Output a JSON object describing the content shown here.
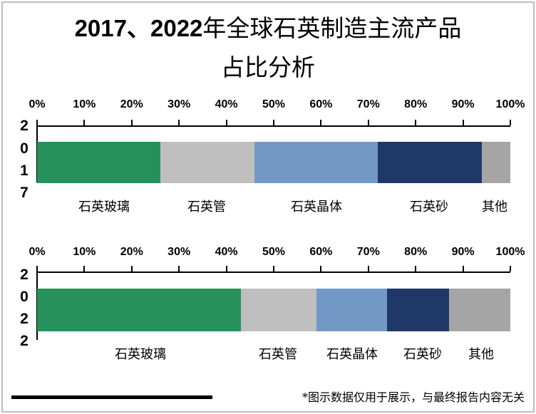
{
  "title": {
    "line1_bold": "2017、2022",
    "line1_rest": "年全球石英制造主流产品",
    "line2": "占比分析"
  },
  "footer": {
    "note": "*图示数据仅用于展示，与最终报告内容无关"
  },
  "colors": {
    "石英玻璃": "#27915C",
    "石英管": "#BFBFBF",
    "石英晶体": "#7299C6",
    "石英砂": "#1F3868",
    "其他": "#A5A5A5"
  },
  "chart_data": [
    {
      "type": "bar",
      "orientation": "horizontal",
      "stacked": "100%",
      "title": "2017、2022年全球石英制造主流产品占比分析",
      "ylabel": "2017",
      "categories": [
        "石英玻璃",
        "石英管",
        "石英晶体",
        "石英砂",
        "其他"
      ],
      "values": [
        26,
        20,
        26,
        22,
        6
      ],
      "xticks": [
        "0%",
        "10%",
        "20%",
        "30%",
        "40%",
        "50%",
        "60%",
        "70%",
        "80%",
        "90%",
        "100%"
      ],
      "xlim": [
        0,
        100
      ],
      "grid": false,
      "legend": "labels below bar segments"
    },
    {
      "type": "bar",
      "orientation": "horizontal",
      "stacked": "100%",
      "ylabel": "2022",
      "categories": [
        "石英玻璃",
        "石英管",
        "石英晶体",
        "石英砂",
        "其他"
      ],
      "values": [
        43,
        16,
        15,
        13,
        13
      ],
      "xticks": [
        "0%",
        "10%",
        "20%",
        "30%",
        "40%",
        "50%",
        "60%",
        "70%",
        "80%",
        "90%",
        "100%"
      ],
      "xlim": [
        0,
        100
      ],
      "grid": false,
      "legend": "labels below bar segments"
    }
  ]
}
